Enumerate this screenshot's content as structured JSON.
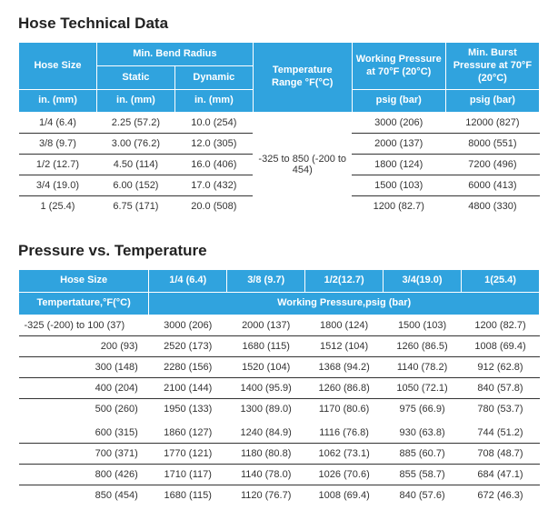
{
  "colors": {
    "header_bg": "#30a3de",
    "header_text": "#ffffff",
    "row_border": "#333333",
    "page_bg": "#ffffff",
    "title_color": "#222222"
  },
  "tech": {
    "title": "Hose Technical Data",
    "hdr": {
      "hose_size": "Hose Size",
      "min_bend": "Min. Bend Radius",
      "static": "Static",
      "dynamic": "Dynamic",
      "temp_range": "Temperature Range °F(°C)",
      "work_press": "Working Pressure at 70°F (20°C)",
      "burst_press": "Min. Burst Pressure at 70°F (20°C)",
      "in_mm": "in. (mm)",
      "psig_bar": "psig (bar)"
    },
    "temp_value": "-325 to 850 (-200 to 454)",
    "rows": [
      {
        "size": "1/4 (6.4)",
        "static": "2.25 (57.2)",
        "dynamic": "10.0 (254)",
        "work": "3000 (206)",
        "burst": "12000 (827)"
      },
      {
        "size": "3/8 (9.7)",
        "static": "3.00 (76.2)",
        "dynamic": "12.0 (305)",
        "work": "2000 (137)",
        "burst": "8000 (551)"
      },
      {
        "size": "1/2 (12.7)",
        "static": "4.50 (114)",
        "dynamic": "16.0 (406)",
        "work": "1800 (124)",
        "burst": "7200 (496)"
      },
      {
        "size": "3/4 (19.0)",
        "static": "6.00 (152)",
        "dynamic": "17.0 (432)",
        "work": "1500 (103)",
        "burst": "6000 (413)"
      },
      {
        "size": "1 (25.4)",
        "static": "6.75 (171)",
        "dynamic": "20.0 (508)",
        "work": "1200 (82.7)",
        "burst": "4800 (330)"
      }
    ]
  },
  "pvt": {
    "title": "Pressure vs. Temperature",
    "hdr": {
      "hose_size": "Hose Size",
      "temp_label": "Tempertature,°F(°C)",
      "work_press_label": "Working Pressure,psig (bar)",
      "sizes": [
        "1/4 (6.4)",
        "3/8 (9.7)",
        "1/2(12.7)",
        "3/4(19.0)",
        "1(25.4)"
      ]
    },
    "rows1": [
      {
        "t": "-325 (-200) to 100 (37)",
        "v": [
          "3000 (206)",
          "2000 (137)",
          "1800 (124)",
          "1500 (103)",
          "1200 (82.7)"
        ]
      },
      {
        "t": "200 (93)",
        "v": [
          "2520 (173)",
          "1680 (115)",
          "1512 (104)",
          "1260 (86.5)",
          "1008 (69.4)"
        ]
      },
      {
        "t": "300 (148)",
        "v": [
          "2280 (156)",
          "1520 (104)",
          "1368 (94.2)",
          "1140 (78.2)",
          "912 (62.8)"
        ]
      },
      {
        "t": "400 (204)",
        "v": [
          "2100 (144)",
          "1400 (95.9)",
          "1260 (86.8)",
          "1050 (72.1)",
          "840 (57.8)"
        ]
      },
      {
        "t": "500 (260)",
        "v": [
          "1950 (133)",
          "1300 (89.0)",
          "1170 (80.6)",
          "975 (66.9)",
          "780 (53.7)"
        ]
      }
    ],
    "rows2": [
      {
        "t": "600 (315)",
        "v": [
          "1860 (127)",
          "1240 (84.9)",
          "1116 (76.8)",
          "930 (63.8)",
          "744 (51.2)"
        ]
      },
      {
        "t": "700 (371)",
        "v": [
          "1770 (121)",
          "1180 (80.8)",
          "1062 (73.1)",
          "885 (60.7)",
          "708 (48.7)"
        ]
      },
      {
        "t": "800 (426)",
        "v": [
          "1710 (117)",
          "1140 (78.0)",
          "1026 (70.6)",
          "855 (58.7)",
          "684 (47.1)"
        ]
      },
      {
        "t": "850 (454)",
        "v": [
          "1680 (115)",
          "1120 (76.7)",
          "1008 (69.4)",
          "840 (57.6)",
          "672 (46.3)"
        ]
      }
    ]
  }
}
